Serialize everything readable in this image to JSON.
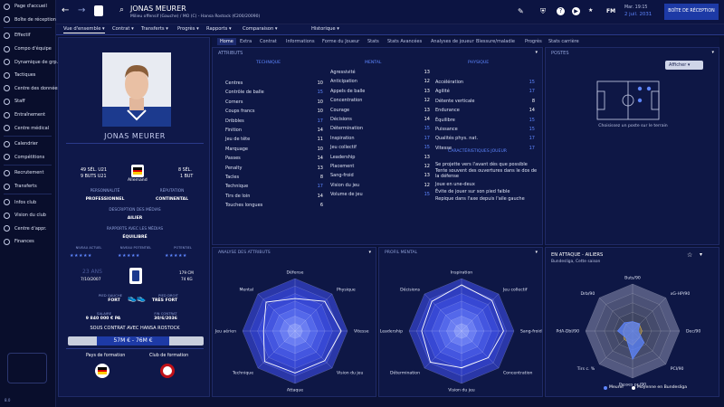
{
  "sidebar": {
    "items": [
      {
        "label": "Page d'accueil",
        "icon": "home-icon"
      },
      {
        "label": "Boîte de réception",
        "icon": "inbox-icon"
      },
      {
        "label": "Effectif",
        "icon": "squad-icon"
      },
      {
        "label": "Compo d'équipe",
        "icon": "lineup-icon"
      },
      {
        "label": "Dynamique de grp.",
        "icon": "dynamics-icon"
      },
      {
        "label": "Tactiques",
        "icon": "tactics-icon"
      },
      {
        "label": "Centre des données",
        "icon": "data-icon"
      },
      {
        "label": "Staff",
        "icon": "staff-icon"
      },
      {
        "label": "Entraînement",
        "icon": "training-icon"
      },
      {
        "label": "Centre médical",
        "icon": "medical-icon"
      },
      {
        "label": "Calendrier",
        "icon": "calendar-icon"
      },
      {
        "label": "Compétitions",
        "icon": "trophy-icon"
      },
      {
        "label": "Recrutement",
        "icon": "scouting-icon"
      },
      {
        "label": "Transferts",
        "icon": "transfer-icon"
      },
      {
        "label": "Infos club",
        "icon": "club-info-icon"
      },
      {
        "label": "Vision du club",
        "icon": "vision-icon"
      },
      {
        "label": "Centre d'appr.",
        "icon": "academy-icon"
      },
      {
        "label": "Finances",
        "icon": "finances-icon"
      }
    ],
    "build": "8.0"
  },
  "header": {
    "player_name": "JONAS MEURER",
    "subtitle": "Milieu offensif (Gauche) / MO (C) - Hansa Rostock (€200/20090)",
    "date_day": "Mar. 19:15",
    "date": "2 juil. 2031",
    "inbox_button": "BOÎTE DE RÉCEPTION",
    "fm_label": "FM"
  },
  "nav": [
    "Vue d'ensemble ▾",
    "Contrat ▾",
    "Transferts ▾",
    "Progrès ▾",
    "Rapports ▾",
    "Comparaison ▾",
    "Historique ▾"
  ],
  "subtabs": [
    "Home",
    "Extra",
    "Contrat",
    "Informations",
    "Forme du Joueur",
    "Stats",
    "Stats Avancées",
    "Analyses de joueur",
    "Blessure/maladie",
    "Progrès",
    "Stats carrière"
  ],
  "profile": {
    "name": "JONAS MEURER",
    "caps_left": "49 SÉL. U21",
    "goals_left": "9 BUTS U21",
    "nationality": "Allemand",
    "caps_right": "8 SÉL.",
    "goals_right": "1 BUT",
    "personality_label": "PERSONNALITÉ",
    "personality": "PROFESSIONNEL",
    "reputation_label": "RÉPUTATION",
    "reputation": "CONTINENTAL",
    "media_label": "DESCRIPTION DES MÉDIAS",
    "media": "AILIER",
    "media_rel_label": "RAPPORTS AVEC LES MÉDIAS",
    "media_rel": "ÉQUILIBRÉ",
    "ability_label": "NIVEAU ACTUEL",
    "potential_label": "NIVEAU POTENTIEL",
    "potential2_label": "POTENTIEL",
    "age": "23 ANS",
    "dob": "7/10/2007",
    "height": "179 CM",
    "weight": "74 KG",
    "foot_left_label": "PIED GAUCHE",
    "foot_left": "FORT",
    "foot_right_label": "PIED DROIT",
    "foot_right": "TRÈS FORT",
    "salary_label": "SALAIRE",
    "salary": "9 840 000 € PA",
    "expiry_label": "FIN CONTRAT",
    "expiry": "30/6/2036",
    "contract_text": "SOUS CONTRAT AVEC HANSA ROSTOCK",
    "value": "57M € - 76M €",
    "training_country_label": "Pays de formation",
    "training_club_label": "Club de formation"
  },
  "attributes": {
    "title": "ATTRIBUTS",
    "technique_header": "TECHNIQUE",
    "mental_header": "MENTAL",
    "physique_header": "PHYSIQUE",
    "technique": [
      [
        "Centres",
        "10"
      ],
      [
        "Contrôle de balle",
        "15"
      ],
      [
        "Corners",
        "10"
      ],
      [
        "Coups francs",
        "10"
      ],
      [
        "Dribbles",
        "17"
      ],
      [
        "Finition",
        "14"
      ],
      [
        "Jeu de tête",
        "11"
      ],
      [
        "Marquage",
        "10"
      ],
      [
        "Passes",
        "14"
      ],
      [
        "Penalty",
        "13"
      ],
      [
        "Tacles",
        "8"
      ],
      [
        "Technique",
        "17"
      ],
      [
        "Tirs de loin",
        "14"
      ],
      [
        "Touches longues",
        "6"
      ]
    ],
    "mental": [
      [
        "Agressivité",
        "13"
      ],
      [
        "Anticipation",
        "12"
      ],
      [
        "Appels de balle",
        "13"
      ],
      [
        "Concentration",
        "12"
      ],
      [
        "Courage",
        "13"
      ],
      [
        "Décisions",
        "14"
      ],
      [
        "Détermination",
        "15"
      ],
      [
        "Inspiration",
        "17"
      ],
      [
        "Jeu collectif",
        "15"
      ],
      [
        "Leadership",
        "13"
      ],
      [
        "Placement",
        "12"
      ],
      [
        "Sang-froid",
        "13"
      ],
      [
        "Vision du jeu",
        "12"
      ],
      [
        "Volume de jeu",
        "15"
      ]
    ],
    "physique": [
      [
        "Accélération",
        "15"
      ],
      [
        "Agilité",
        "17"
      ],
      [
        "Détente verticale",
        "8"
      ],
      [
        "Endurance",
        "14"
      ],
      [
        "Équilibre",
        "15"
      ],
      [
        "Puissance",
        "15"
      ],
      [
        "Qualités phys. nat.",
        "17"
      ],
      [
        "Vitesse",
        "17"
      ]
    ],
    "traits_title": "CARACTÉRISTIQUES JOUEUR",
    "traits": [
      "Se projette vers l'avant dès que possible",
      "Tente souvent des ouvertures dans le dos de la défense",
      "Joue en une-deux",
      "Évite de jouer sur son pied faible",
      "Repique dans l'axe depuis l'aile gauche"
    ]
  },
  "positions": {
    "title": "POSTES",
    "button": "Afficher",
    "hint": "Choisissez un poste sur le terrain"
  },
  "attr_analysis": {
    "title": "ANALYSE DES ATTRIBUTS",
    "labels": [
      "Défense",
      "Physique",
      "Vitesse",
      "Vision du jeu",
      "Attaque",
      "Technique",
      "Jeu aérien",
      "Mental"
    ]
  },
  "mental_profile": {
    "title": "PROFIL MENTAL",
    "labels": [
      "Inspiration",
      "Jeu collectif",
      "Sang-froid",
      "Concentration",
      "Vision du jeu",
      "Détermination",
      "Leadership",
      "Décisions"
    ]
  },
  "performance": {
    "title": "EN ATTAQUE - AILIERS",
    "subtitle": "Bundesliga, Cette saison",
    "labels": [
      "Buts/90",
      "xG-HP/90",
      "Dec/90",
      "PCI/90",
      "Passes pr./90",
      "Tirs c. %",
      "PdA-Dbl/90",
      "Drb/90"
    ],
    "legend_player": "Meurer",
    "legend_avg": "Moyenne en Bundesliga",
    "player_color": "#5e86ff",
    "avg_color": "#d8b04a"
  },
  "colors": {
    "accent": "#1d3aa6",
    "bg": "#0b1236",
    "panel": "#0e1745",
    "highlight": "#5e86ff"
  }
}
